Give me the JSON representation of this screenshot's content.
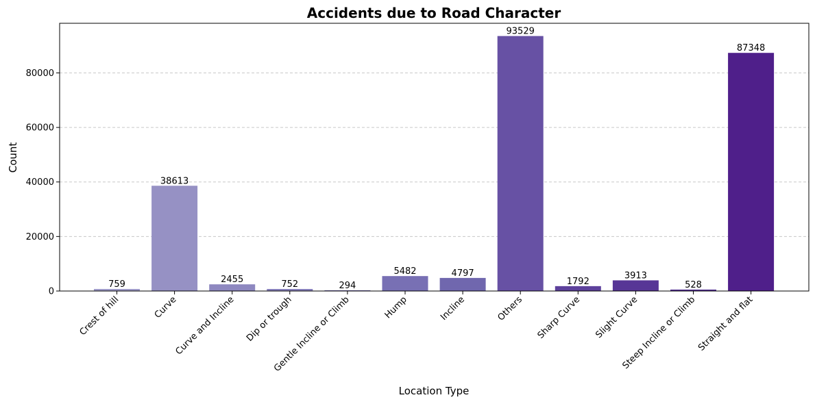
{
  "chart_data": {
    "type": "bar",
    "title": "Accidents due to Road Character",
    "xlabel": "Location Type",
    "ylabel": "Count",
    "categories": [
      "Crest of hill",
      "Curve",
      "Curve and Incline",
      "Dip or trough",
      "Gentle Incline or Climb",
      "Hump",
      "Incline",
      "Others",
      "Sharp Curve",
      "Slight Curve",
      "Steep Incline or Climb",
      "Straight and flat"
    ],
    "values": [
      759,
      38613,
      2455,
      752,
      294,
      5482,
      4797,
      93529,
      1792,
      3913,
      528,
      87348
    ],
    "data_labels": [
      "759",
      "38613",
      "2455",
      "752",
      "294",
      "5482",
      "4797",
      "93529",
      "1792",
      "3913",
      "528",
      "87348"
    ],
    "ylim": [
      0,
      98204
    ],
    "yticks": [
      0,
      20000,
      40000,
      60000,
      80000
    ],
    "ytick_labels": [
      "0",
      "20000",
      "40000",
      "60000",
      "80000"
    ],
    "grid": "y-dashed",
    "colors": [
      "#9f9bc9",
      "#9691c4",
      "#8e88c0",
      "#8780bc",
      "#7f77b8",
      "#7870b4",
      "#7067ae",
      "#6751a4",
      "#5d419c",
      "#573696",
      "#512c90",
      "#4f1f8a"
    ]
  }
}
